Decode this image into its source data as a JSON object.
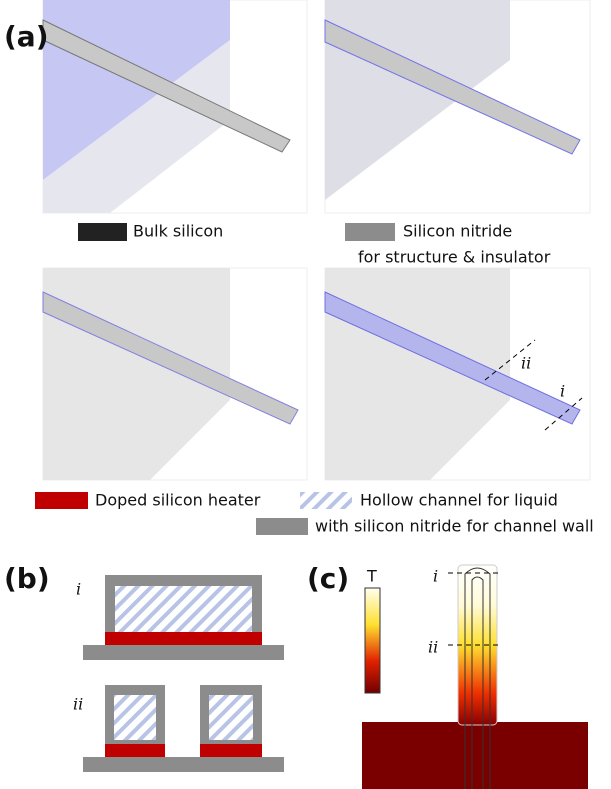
{
  "panel_a": {
    "label": "(a)",
    "legend_top": [
      {
        "label": "Bulk silicon"
      },
      {
        "label": "Silicon nitride",
        "sublabel": "for structure & insulator"
      }
    ],
    "cut_labels": [
      "ii",
      "i"
    ],
    "legend_bottom": [
      "Doped silicon heater",
      "Hollow channel for liquid",
      "with silicon nitride for channel wall"
    ]
  },
  "panel_b": {
    "label": "(b)",
    "sections": [
      "i",
      "ii"
    ]
  },
  "panel_c": {
    "label": "(c)",
    "colorbar_label": "T",
    "sections": [
      "i",
      "ii"
    ]
  }
}
